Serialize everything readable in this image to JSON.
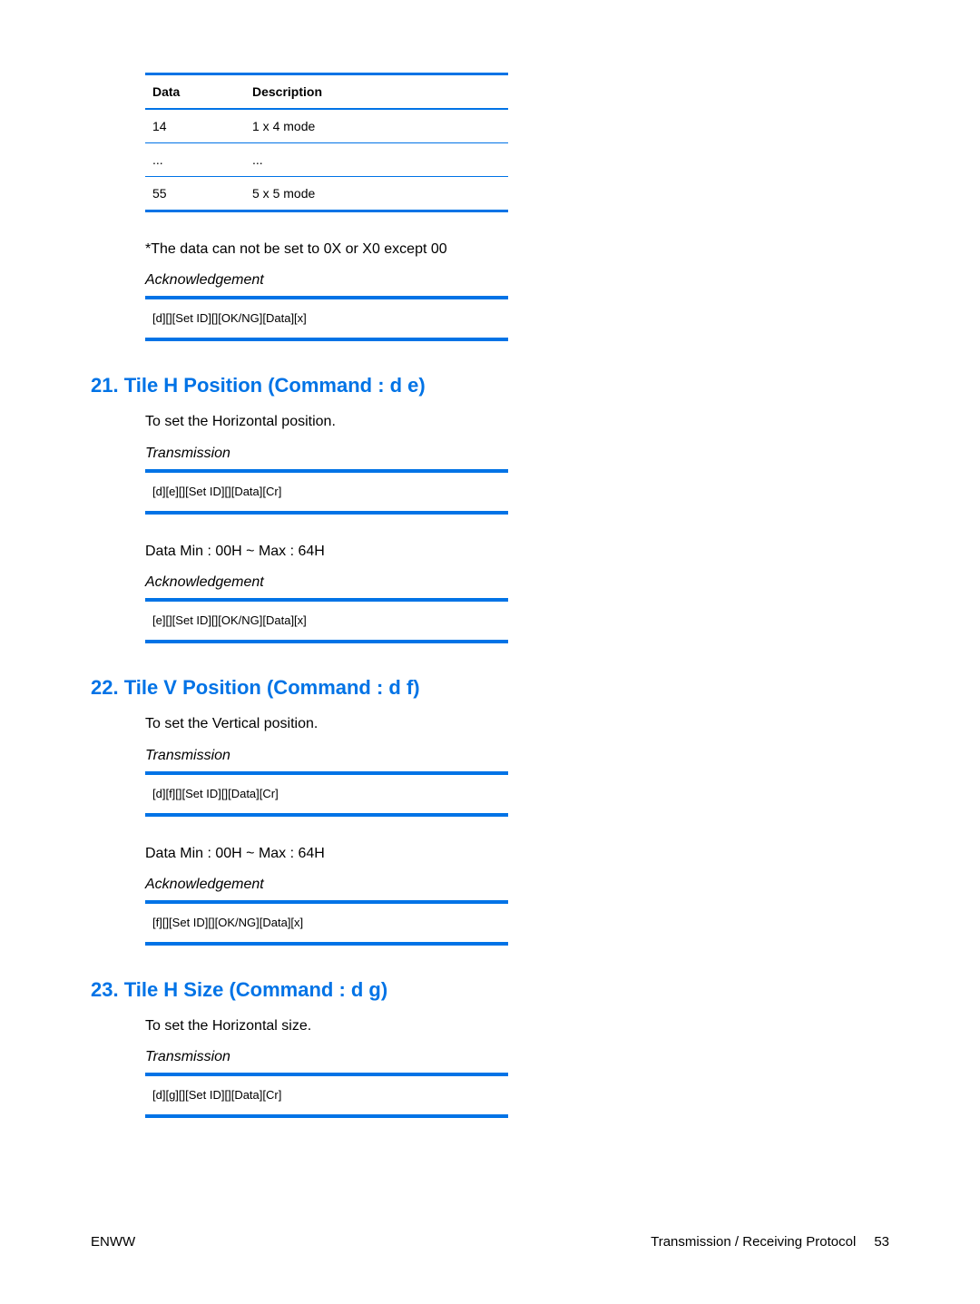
{
  "table": {
    "headers": [
      "Data",
      "Description"
    ],
    "rows": [
      [
        "14",
        "1 x 4 mode"
      ],
      [
        "...",
        "..."
      ],
      [
        "55",
        "5 x 5 mode"
      ]
    ],
    "border_color": "#0073e6"
  },
  "note": "*The data can not be set to 0X or X0 except 00",
  "ack_label": "Acknowledgement",
  "trans_label": "Transmission",
  "box0": "[d][][Set ID][][OK/NG][Data][x]",
  "section21": {
    "heading": "21. Tile H Position (Command : d e)",
    "desc": "To set the Horizontal position.",
    "trans_code": "[d][e][][Set ID][][Data][Cr]",
    "range": "Data Min : 00H ~ Max : 64H",
    "ack_code": "[e][][Set ID][][OK/NG][Data][x]"
  },
  "section22": {
    "heading": "22. Tile V Position (Command : d f)",
    "desc": "To set the Vertical position.",
    "trans_code": "[d][f][][Set ID][][Data][Cr]",
    "range": "Data Min : 00H ~ Max : 64H",
    "ack_code": "[f][][Set ID][][OK/NG][Data][x]"
  },
  "section23": {
    "heading": "23. Tile H Size (Command : d g)",
    "desc": "To set the Horizontal size.",
    "trans_code": "[d][g][][Set ID][][Data][Cr]"
  },
  "footer": {
    "left": "ENWW",
    "right_label": "Transmission / Receiving Protocol",
    "page": "53"
  },
  "colors": {
    "heading": "#0073e6",
    "text": "#000000",
    "background": "#ffffff"
  },
  "fonts": {
    "body_size": 16,
    "heading_size": 22,
    "code_size": 13,
    "table_size": 14
  }
}
